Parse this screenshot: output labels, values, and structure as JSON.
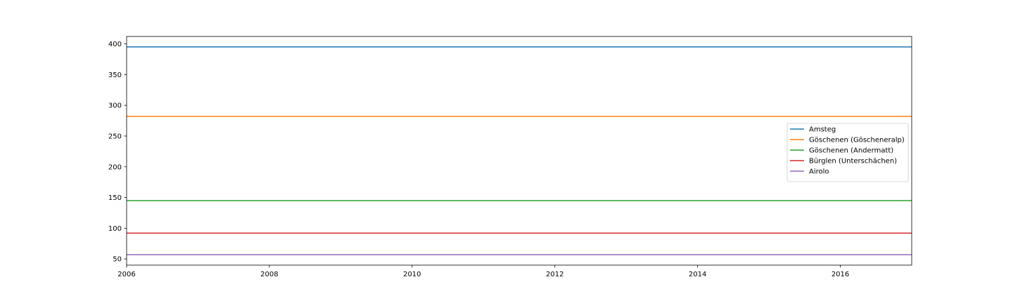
{
  "chart_data": {
    "type": "line",
    "title": "",
    "xlabel": "",
    "ylabel": "",
    "xlim": [
      2006,
      2017
    ],
    "ylim": [
      40,
      412
    ],
    "x_ticks": [
      2006,
      2008,
      2010,
      2012,
      2014,
      2016
    ],
    "y_ticks": [
      50,
      100,
      150,
      200,
      250,
      300,
      350,
      400
    ],
    "x": [
      2006,
      2017
    ],
    "grid": false,
    "legend_position": "center-right",
    "series": [
      {
        "name": "Amsteg",
        "color": "#1f77b4",
        "values": [
          395,
          395
        ]
      },
      {
        "name": "Göschenen (Göscheneralp)",
        "color": "#ff7f0e",
        "values": [
          282,
          282
        ]
      },
      {
        "name": "Göschenen (Andermatt)",
        "color": "#2ca02c",
        "values": [
          145,
          145
        ]
      },
      {
        "name": "Bürglen (Unterschächen)",
        "color": "#d62728",
        "values": [
          92,
          92
        ]
      },
      {
        "name": "Airolo",
        "color": "#9467bd",
        "values": [
          57,
          57
        ]
      }
    ]
  }
}
